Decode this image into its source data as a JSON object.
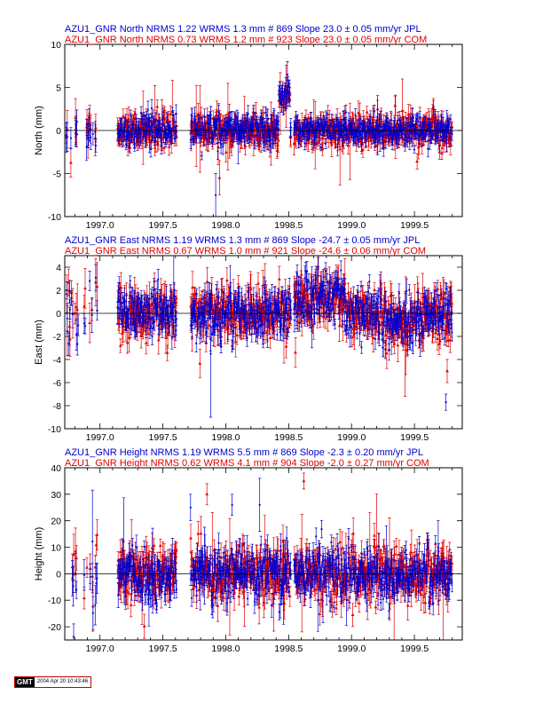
{
  "colors": {
    "jpl": "#0000d0",
    "com": "#e00000",
    "axis": "#000000",
    "zero_line": "#000000"
  },
  "x_axis": {
    "range": [
      1996.72,
      1999.88
    ],
    "ticks": [
      "1997.0",
      "1997.5",
      "1998.0",
      "1998.5",
      "1999.0",
      "1999.5"
    ]
  },
  "footer": {
    "logo_text": "GMT",
    "timestamp": "2004 Apr 20 10:43:46"
  },
  "chart_data": [
    {
      "type": "scatter",
      "component": "North",
      "ylabel": "North (mm)",
      "ylim": [
        -10,
        10
      ],
      "yticks": [
        "10",
        "5",
        "0",
        "-5",
        "-10"
      ],
      "legend": [
        "AZU1_GNR North NRMS 1.22 WRMS  1.3 mm # 869 Slope   23.0 ±  0.05 mm/yr JPL",
        "AZU1_GNR North NRMS 0.73 WRMS  1.2 mm # 923 Slope   23.0 ±  0.05 mm/yr COM"
      ],
      "series": [
        {
          "name": "JPL",
          "count": 869,
          "nrms": 1.22,
          "wrms_mm": 1.3,
          "slope": 23.0,
          "slope_sigma": 0.05
        },
        {
          "name": "COM",
          "count": 923,
          "nrms": 0.73,
          "wrms_mm": 1.2,
          "slope": 23.0,
          "slope_sigma": 0.05
        }
      ],
      "scatter_sd": 0.9,
      "bar_median": 0.9,
      "features": [
        {
          "x0": 1998.42,
          "x1": 1998.51,
          "offset": 4.0
        }
      ],
      "outliers": [
        {
          "x": 1997.92,
          "y": -7.5,
          "err": 2.5
        },
        {
          "x": 1997.95,
          "y": -5.5,
          "err": 2
        },
        {
          "x": 1998.49,
          "y": 6.5,
          "err": 1.5
        }
      ]
    },
    {
      "type": "scatter",
      "component": "East",
      "ylabel": "East (mm)",
      "ylim": [
        -10,
        5
      ],
      "yticks": [
        "4",
        "2",
        "0",
        "-2",
        "-4",
        "-6",
        "-8",
        "-10"
      ],
      "legend": [
        "AZU1_GNR East NRMS 1.19 WRMS  1.3 mm # 869 Slope  -24.7 ±  0.05 mm/yr JPL",
        "AZU1_GNR East NRMS 0.67 WRMS  1.0 mm # 921 Slope  -24.6 ±  0.06 mm/yr COM"
      ],
      "series": [
        {
          "name": "JPL",
          "count": 869,
          "nrms": 1.19,
          "wrms_mm": 1.3,
          "slope": -24.7,
          "slope_sigma": 0.05
        },
        {
          "name": "COM",
          "count": 921,
          "nrms": 0.67,
          "wrms_mm": 1.0,
          "slope": -24.6,
          "slope_sigma": 0.06
        }
      ],
      "scatter_sd": 1.1,
      "bar_median": 0.9,
      "features": [
        {
          "x0": 1998.53,
          "x1": 1998.95,
          "offset": 1.2
        },
        {
          "x0": 1999.25,
          "x1": 1999.5,
          "offset": -1.0
        }
      ],
      "outliers": [
        {
          "x": 1999.75,
          "y": -7.7,
          "err": 0.7
        },
        {
          "x": 1999.76,
          "y": -5.0,
          "err": 1.0
        },
        {
          "x": 1997.88,
          "y": -3.5,
          "err": 5.5
        }
      ]
    },
    {
      "type": "scatter",
      "component": "Height",
      "ylabel": "Height (mm)",
      "ylim": [
        -25,
        40
      ],
      "yticks": [
        "40",
        "30",
        "20",
        "10",
        "0",
        "-10",
        "-20"
      ],
      "legend": [
        "AZU1_GNR Height NRMS 1.19 WRMS  5.5 mm # 869 Slope   -2.3 ±  0.20 mm/yr JPL",
        "AZU1_GNR Height NRMS 0.62 WRMS  4.1 mm # 904 Slope   -2.0 ±  0.27 mm/yr COM"
      ],
      "series": [
        {
          "name": "JPL",
          "count": 869,
          "nrms": 1.19,
          "wrms_mm": 5.5,
          "slope": -2.3,
          "slope_sigma": 0.2
        },
        {
          "name": "COM",
          "count": 904,
          "nrms": 0.62,
          "wrms_mm": 4.1,
          "slope": -2.0,
          "slope_sigma": 0.27
        }
      ],
      "scatter_sd": 5.0,
      "bar_median": 4.0,
      "features": [],
      "outliers": [
        {
          "x": 1998.27,
          "y": 26,
          "err": 10
        },
        {
          "x": 1998.62,
          "y": 35,
          "err": 3
        },
        {
          "x": 1997.72,
          "y": 25,
          "err": 5
        },
        {
          "x": 1997.85,
          "y": 30,
          "err": 4
        },
        {
          "x": 1998.05,
          "y": 26,
          "err": 4
        }
      ]
    }
  ],
  "gaps": [
    [
      1996.83,
      1996.87
    ],
    [
      1996.98,
      1997.14
    ],
    [
      1997.61,
      1997.72
    ],
    [
      1998.52,
      1998.54
    ]
  ],
  "sparse_segments": [
    [
      1996.72,
      1996.83
    ],
    [
      1996.87,
      1996.98
    ]
  ]
}
